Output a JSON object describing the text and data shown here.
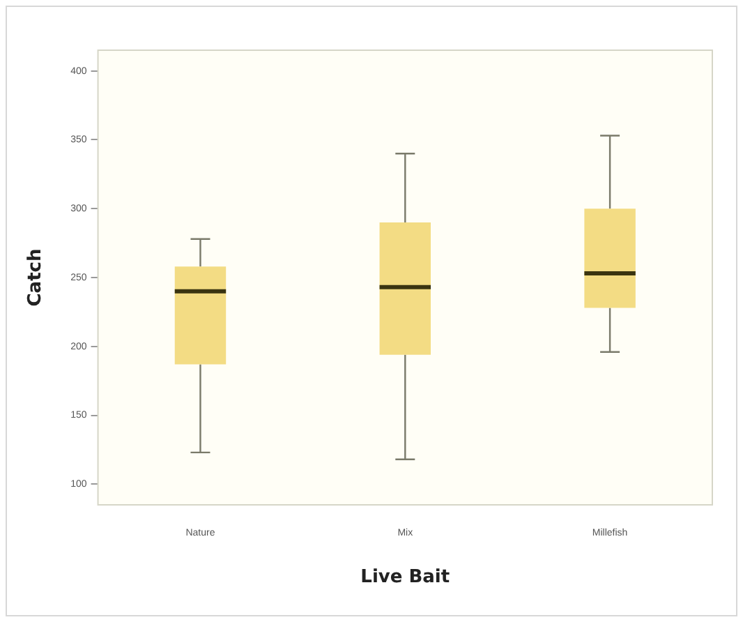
{
  "chart_data": {
    "type": "box",
    "xlabel": "Live Bait",
    "ylabel": "Catch",
    "categories": [
      "Nature",
      "Mix",
      "Millefish"
    ],
    "boxes": [
      {
        "low": 123,
        "q1": 187,
        "median": 240,
        "q3": 258,
        "high": 278
      },
      {
        "low": 118,
        "q1": 194,
        "median": 243,
        "q3": 290,
        "high": 340
      },
      {
        "low": 196,
        "q1": 228,
        "median": 253,
        "q3": 300,
        "high": 353
      }
    ],
    "color": "#f3dc84",
    "ylim": [
      85,
      415
    ],
    "yticks": [
      100,
      150,
      200,
      250,
      300,
      350,
      400
    ],
    "grid": false,
    "legend": false
  }
}
